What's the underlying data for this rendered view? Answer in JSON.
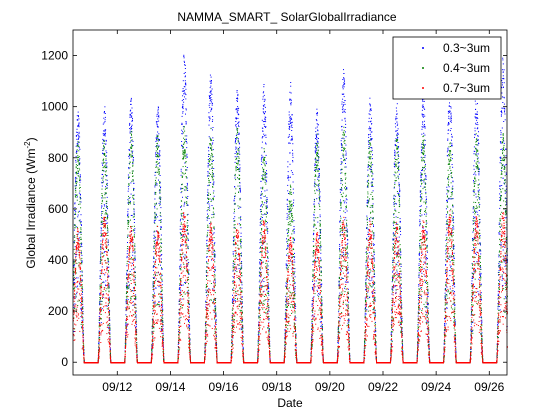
{
  "chart_data": {
    "type": "scatter",
    "title": "NAMMA_SMART_ SolarGlobalIrradiance",
    "xlabel": "Date",
    "ylabel_base": "Global Irradiance (Wm",
    "ylabel_sup": "-2",
    "ylabel_end": ")",
    "xlim": [
      "2006-09-10T08:00",
      "2006-09-26T16:00"
    ],
    "ylim": [
      -50,
      1300
    ],
    "yticks": [
      0,
      200,
      400,
      600,
      800,
      1000,
      1200
    ],
    "ytick_labels": [
      "0",
      "200",
      "400",
      "600",
      "800",
      "1000",
      "1200"
    ],
    "xticks": [
      "2006-09-12",
      "2006-09-14",
      "2006-09-16",
      "2006-09-18",
      "2006-09-20",
      "2006-09-22",
      "2006-09-24",
      "2006-09-26"
    ],
    "xtick_labels": [
      "09/12",
      "09/14",
      "09/16",
      "09/18",
      "09/20",
      "09/22",
      "09/24",
      "09/26"
    ],
    "legend_position": "top-right",
    "series": [
      {
        "name": "0.3~3um",
        "color": "#0000ff"
      },
      {
        "name": "0.4~3um",
        "color": "#008000"
      },
      {
        "name": "0.7~3um",
        "color": "#ff0000"
      }
    ],
    "daily_peak_irradiance": [
      {
        "date": "2006-09-10",
        "values": [
          1000,
          880,
          530
        ]
      },
      {
        "date": "2006-09-11",
        "values": [
          1010,
          900,
          580
        ]
      },
      {
        "date": "2006-09-12",
        "values": [
          1040,
          920,
          550
        ]
      },
      {
        "date": "2006-09-13",
        "values": [
          1030,
          900,
          540
        ]
      },
      {
        "date": "2006-09-14",
        "values": [
          1220,
          930,
          600
        ]
      },
      {
        "date": "2006-09-15",
        "values": [
          1150,
          920,
          560
        ]
      },
      {
        "date": "2006-09-16",
        "values": [
          1070,
          920,
          550
        ]
      },
      {
        "date": "2006-09-17",
        "values": [
          1100,
          850,
          560
        ]
      },
      {
        "date": "2006-09-18",
        "values": [
          1100,
          700,
          500
        ]
      },
      {
        "date": "2006-09-19",
        "values": [
          1000,
          900,
          520
        ]
      },
      {
        "date": "2006-09-20",
        "values": [
          1150,
          930,
          580
        ]
      },
      {
        "date": "2006-09-21",
        "values": [
          1040,
          900,
          560
        ]
      },
      {
        "date": "2006-09-22",
        "values": [
          1040,
          900,
          560
        ]
      },
      {
        "date": "2006-09-23",
        "values": [
          1060,
          900,
          560
        ]
      },
      {
        "date": "2006-09-24",
        "values": [
          1120,
          880,
          600
        ]
      },
      {
        "date": "2006-09-25",
        "values": [
          1100,
          900,
          580
        ]
      },
      {
        "date": "2006-09-26",
        "values": [
          1200,
          900,
          600
        ]
      }
    ]
  }
}
